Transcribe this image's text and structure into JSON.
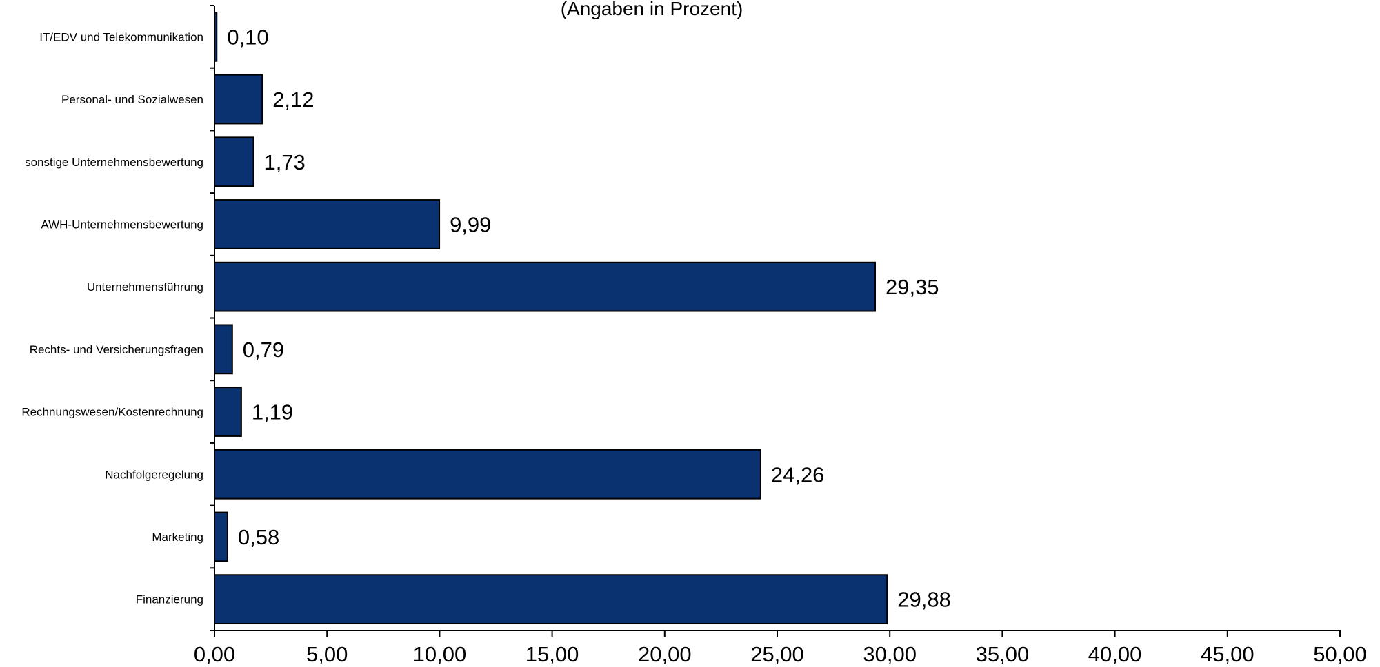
{
  "chart_data": {
    "type": "bar",
    "orientation": "horizontal",
    "subtitle": "(Angaben in Prozent)",
    "categories": [
      "IT/EDV und Telekommunikation",
      "Personal- und Sozialwesen",
      "sonstige Unternehmensbewertung",
      "AWH-Unternehmensbewertung",
      "Unternehmensführung",
      "Rechts- und Versicherungsfragen",
      "Rechnungswesen/Kostenrechnung",
      "Nachfolgeregelung",
      "Marketing",
      "Finanzierung"
    ],
    "values": [
      0.1,
      2.12,
      1.73,
      9.99,
      29.35,
      0.79,
      1.19,
      24.26,
      0.58,
      29.88
    ],
    "data_labels": [
      "0,10",
      "2,12",
      "1,73",
      "9,99",
      "29,35",
      "0,79",
      "1,19",
      "24,26",
      "0,58",
      "29,88"
    ],
    "xlim": [
      0,
      50
    ],
    "xticks": [
      0,
      5,
      10,
      15,
      20,
      25,
      30,
      35,
      40,
      45,
      50
    ],
    "xtick_labels": [
      "0,00",
      "5,00",
      "10,00",
      "15,00",
      "20,00",
      "25,00",
      "30,00",
      "35,00",
      "40,00",
      "45,00",
      "50,00"
    ],
    "grid": false,
    "legend": "none",
    "bar_color": "#0a3270"
  }
}
